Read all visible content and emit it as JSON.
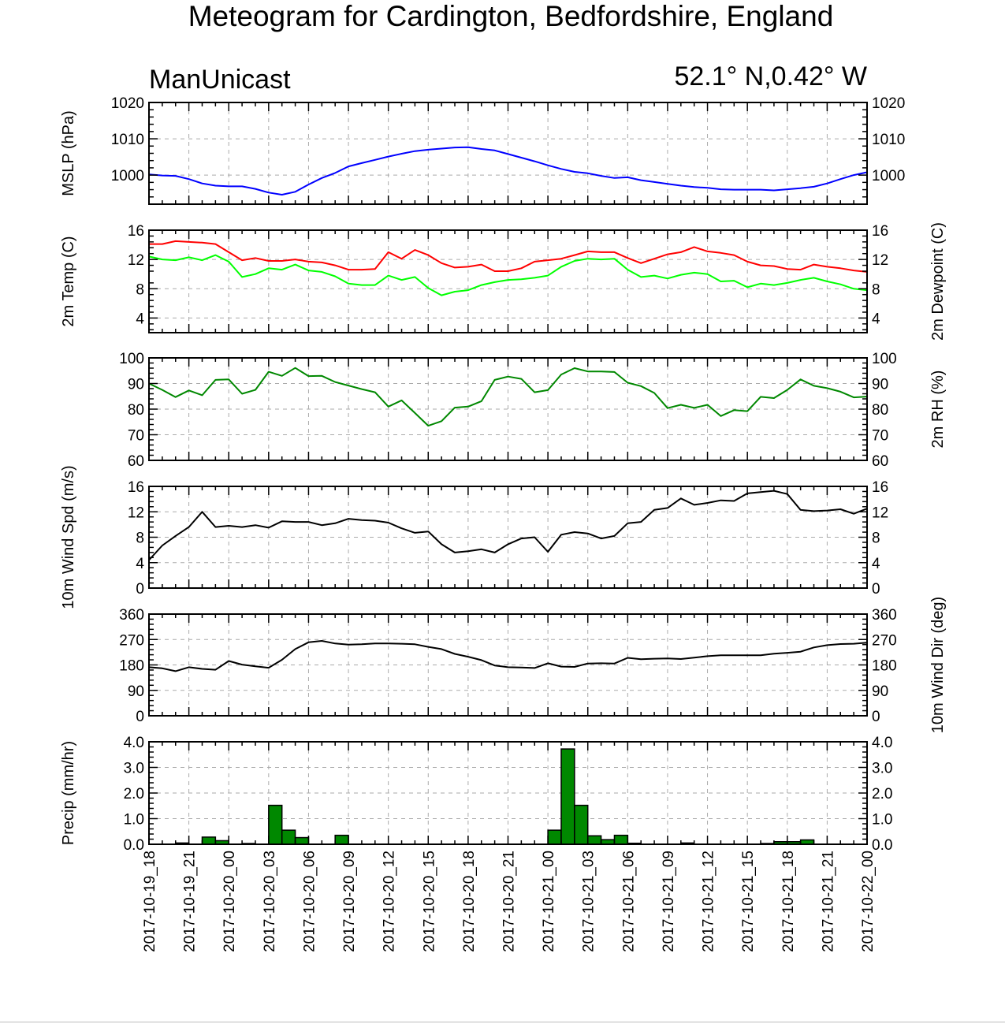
{
  "header": {
    "title": "Meteogram for Cardington, Bedfordshire, England",
    "model": "ManUnicast",
    "location": "52.1° N,0.42° W"
  },
  "time_axis": {
    "start": "2017-10-19_18",
    "end": "2017-10-22_00",
    "labels": [
      "2017-10-19_18",
      "2017-10-19_21",
      "2017-10-20_00",
      "2017-10-20_03",
      "2017-10-20_06",
      "2017-10-20_09",
      "2017-10-20_12",
      "2017-10-20_15",
      "2017-10-20_18",
      "2017-10-20_21",
      "2017-10-21_00",
      "2017-10-21_03",
      "2017-10-21_06",
      "2017-10-21_09",
      "2017-10-21_12",
      "2017-10-21_15",
      "2017-10-21_18",
      "2017-10-21_21",
      "2017-10-22_00"
    ]
  },
  "chart_data": [
    {
      "type": "line",
      "ylabel": "MSLP (hPa)",
      "right_ylabel": "",
      "ylim": [
        992,
        1020
      ],
      "yticks": [
        1000,
        1010,
        1020
      ],
      "right_yticks": [
        1000,
        1010,
        1020
      ],
      "grid": true,
      "x": [
        0,
        1,
        2,
        3,
        4,
        5,
        6,
        7,
        8,
        9,
        10,
        11,
        12,
        13,
        14,
        15,
        16,
        17,
        18,
        19,
        20,
        21,
        22,
        23,
        24,
        25,
        26,
        27,
        28,
        29,
        30,
        31,
        32,
        33,
        34,
        35,
        36,
        37,
        38,
        39,
        40,
        41,
        42,
        43,
        44,
        45,
        46,
        47,
        48,
        49,
        50,
        51,
        52,
        53,
        54
      ],
      "series": [
        {
          "name": "",
          "color": "#0000ff",
          "values": [
            1000.2,
            999.9,
            999.8,
            998.9,
            997.7,
            997.1,
            996.9,
            996.9,
            996.2,
            995.2,
            994.6,
            995.4,
            997.4,
            999.2,
            1000.6,
            1002.4,
            1003.3,
            1004.2,
            1005.1,
            1005.9,
            1006.6,
            1007.0,
            1007.3,
            1007.6,
            1007.7,
            1007.2,
            1006.8,
            1005.8,
            1004.8,
            1003.8,
            1002.7,
            1001.7,
            1000.9,
            1000.5,
            999.8,
            999.2,
            999.4,
            998.6,
            998.1,
            997.6,
            997.1,
            996.7,
            996.5,
            996.1,
            996.0,
            996.0,
            996.0,
            995.8,
            996.1,
            996.4,
            996.8,
            997.7,
            998.9,
            1000.0,
            1000.8
          ]
        }
      ]
    },
    {
      "type": "line",
      "ylabel": "2m Temp (C)",
      "right_ylabel": "2m Dewpoint (C)",
      "ylim": [
        2,
        16
      ],
      "yticks": [
        4,
        8,
        12,
        16
      ],
      "right_yticks": [
        4,
        8,
        12,
        16
      ],
      "grid": true,
      "x": [
        0,
        1,
        2,
        3,
        4,
        5,
        6,
        7,
        8,
        9,
        10,
        11,
        12,
        13,
        14,
        15,
        16,
        17,
        18,
        19,
        20,
        21,
        22,
        23,
        24,
        25,
        26,
        27,
        28,
        29,
        30,
        31,
        32,
        33,
        34,
        35,
        36,
        37,
        38,
        39,
        40,
        41,
        42,
        43,
        44,
        45,
        46,
        47,
        48,
        49,
        50,
        51,
        52,
        53,
        54
      ],
      "series": [
        {
          "name": "",
          "color": "#ff0000",
          "values": [
            14.1,
            14.1,
            14.5,
            14.4,
            14.3,
            14.1,
            13.0,
            11.9,
            12.2,
            11.8,
            11.8,
            12.0,
            11.7,
            11.6,
            11.2,
            10.6,
            10.6,
            10.7,
            13.0,
            12.1,
            13.3,
            12.6,
            11.5,
            10.9,
            11.0,
            11.3,
            10.4,
            10.4,
            10.8,
            11.7,
            11.9,
            12.1,
            12.6,
            13.1,
            13.0,
            13.0,
            12.2,
            11.5,
            12.1,
            12.7,
            13.0,
            13.7,
            13.1,
            12.9,
            12.6,
            11.7,
            11.2,
            11.1,
            10.7,
            10.6,
            11.3,
            11.0,
            10.8,
            10.5,
            10.3
          ]
        },
        {
          "name": "",
          "color": "#00ff00",
          "values": [
            12.4,
            12.0,
            11.9,
            12.3,
            11.9,
            12.6,
            11.7,
            9.6,
            10.0,
            10.8,
            10.6,
            11.3,
            10.5,
            10.3,
            9.7,
            8.7,
            8.5,
            8.5,
            9.8,
            9.2,
            9.6,
            8.1,
            7.1,
            7.6,
            7.8,
            8.5,
            8.9,
            9.2,
            9.3,
            9.5,
            9.8,
            11.0,
            11.8,
            12.1,
            12.0,
            12.1,
            10.6,
            9.6,
            9.8,
            9.4,
            9.9,
            10.2,
            10.0,
            9.0,
            9.1,
            8.2,
            8.7,
            8.5,
            8.8,
            9.2,
            9.5,
            9.0,
            8.6,
            8.0,
            7.8
          ]
        }
      ]
    },
    {
      "type": "line",
      "ylabel": "",
      "right_ylabel": "2m RH (%)",
      "ylim": [
        60,
        100
      ],
      "yticks": [
        60,
        70,
        80,
        90,
        100
      ],
      "right_yticks": [
        60,
        70,
        80,
        90,
        100
      ],
      "grid": true,
      "x": [
        0,
        1,
        2,
        3,
        4,
        5,
        6,
        7,
        8,
        9,
        10,
        11,
        12,
        13,
        14,
        15,
        16,
        17,
        18,
        19,
        20,
        21,
        22,
        23,
        24,
        25,
        26,
        27,
        28,
        29,
        30,
        31,
        32,
        33,
        34,
        35,
        36,
        37,
        38,
        39,
        40,
        41,
        42,
        43,
        44,
        45,
        46,
        47,
        48,
        49,
        50,
        51,
        52,
        53,
        54
      ],
      "series": [
        {
          "name": "",
          "color": "#008800",
          "values": [
            90,
            87.5,
            84.7,
            87.3,
            85.4,
            91.4,
            91.6,
            86,
            87.5,
            94.6,
            93,
            96.1,
            92.9,
            93,
            90.6,
            89.2,
            87.8,
            86.6,
            81,
            83.4,
            78.5,
            73.5,
            75.3,
            80.6,
            81,
            83.1,
            91.4,
            92.7,
            91.8,
            86.6,
            87.4,
            93.5,
            96,
            94.7,
            94.7,
            94.5,
            90.3,
            89,
            86.3,
            80.4,
            81.7,
            80.5,
            81.7,
            77.3,
            79.6,
            79.2,
            84.8,
            84.3,
            87.5,
            91.6,
            89.1,
            88.2,
            86.8,
            84.6,
            84.9
          ]
        }
      ]
    },
    {
      "type": "line",
      "ylabel": "10m Wind Spd (m/s)",
      "right_ylabel": "",
      "ylim": [
        0,
        16
      ],
      "yticks": [
        0,
        4,
        8,
        12,
        16
      ],
      "right_yticks": [
        0,
        4,
        8,
        12,
        16
      ],
      "grid": true,
      "x": [
        0,
        1,
        2,
        3,
        4,
        5,
        6,
        7,
        8,
        9,
        10,
        11,
        12,
        13,
        14,
        15,
        16,
        17,
        18,
        19,
        20,
        21,
        22,
        23,
        24,
        25,
        26,
        27,
        28,
        29,
        30,
        31,
        32,
        33,
        34,
        35,
        36,
        37,
        38,
        39,
        40,
        41,
        42,
        43,
        44,
        45,
        46,
        47,
        48,
        49,
        50,
        51,
        52,
        53,
        54
      ],
      "series": [
        {
          "name": "",
          "color": "#000000",
          "values": [
            4.4,
            6.7,
            8.2,
            9.6,
            12,
            9.6,
            9.8,
            9.6,
            9.9,
            9.5,
            10.5,
            10.4,
            10.4,
            9.9,
            10.2,
            10.9,
            10.7,
            10.6,
            10.3,
            9.4,
            8.7,
            8.9,
            6.9,
            5.6,
            5.8,
            6.1,
            5.6,
            6.9,
            7.8,
            8,
            5.7,
            8.4,
            8.8,
            8.6,
            7.8,
            8.2,
            10.2,
            10.4,
            12.3,
            12.6,
            14.1,
            13.1,
            13.4,
            13.8,
            13.7,
            14.9,
            15.1,
            15.3,
            14.8,
            12.3,
            12.1,
            12.2,
            12.4,
            11.7,
            12.5
          ]
        }
      ]
    },
    {
      "type": "line",
      "ylabel": "",
      "right_ylabel": "10m Wind Dir (deg)",
      "ylim": [
        0,
        360
      ],
      "yticks": [
        0,
        90,
        180,
        270,
        360
      ],
      "right_yticks": [
        0,
        90,
        180,
        270,
        360
      ],
      "grid": true,
      "x": [
        0,
        1,
        2,
        3,
        4,
        5,
        6,
        7,
        8,
        9,
        10,
        11,
        12,
        13,
        14,
        15,
        16,
        17,
        18,
        19,
        20,
        21,
        22,
        23,
        24,
        25,
        26,
        27,
        28,
        29,
        30,
        31,
        32,
        33,
        34,
        35,
        36,
        37,
        38,
        39,
        40,
        41,
        42,
        43,
        44,
        45,
        46,
        47,
        48,
        49,
        50,
        51,
        52,
        53,
        54
      ],
      "series": [
        {
          "name": "",
          "color": "#000000",
          "values": [
            172,
            168,
            158,
            172,
            166,
            163,
            194,
            181,
            175,
            170,
            198,
            236,
            260,
            265,
            256,
            252,
            253,
            256,
            256,
            255,
            253,
            244,
            236,
            219,
            209,
            197,
            178,
            172,
            171,
            169,
            186,
            174,
            173,
            185,
            186,
            185,
            205,
            200,
            202,
            203,
            201,
            206,
            211,
            214,
            214,
            214,
            214,
            220,
            223,
            227,
            242,
            250,
            254,
            255,
            259
          ]
        }
      ]
    },
    {
      "type": "bar",
      "ylabel": "Precip (mm/hr)",
      "right_ylabel": "",
      "ylim": [
        0,
        4
      ],
      "yticks": [
        "0.0",
        "1.0",
        "2.0",
        "3.0",
        "4.0"
      ],
      "right_yticks": [
        "0.0",
        "1.0",
        "2.0",
        "3.0",
        "4.0"
      ],
      "grid": true,
      "x": [
        0,
        1,
        2,
        3,
        4,
        5,
        6,
        7,
        8,
        9,
        10,
        11,
        12,
        13,
        14,
        15,
        16,
        17,
        18,
        19,
        20,
        21,
        22,
        23,
        24,
        25,
        26,
        27,
        28,
        29,
        30,
        31,
        32,
        33,
        34,
        35,
        36,
        37,
        38,
        39,
        40,
        41,
        42,
        43,
        44,
        45,
        46,
        47,
        48,
        49,
        50,
        51,
        52,
        53
      ],
      "series": [
        {
          "name": "",
          "color": "#008800",
          "values": [
            0,
            0,
            0.05,
            0,
            0.28,
            0.14,
            0,
            0.03,
            0,
            1.52,
            0.55,
            0.26,
            0,
            0,
            0.35,
            0,
            0,
            0,
            0,
            0,
            0,
            0,
            0,
            0,
            0,
            0,
            0,
            0,
            0,
            0,
            0.55,
            3.72,
            1.52,
            0.33,
            0.18,
            0.35,
            0.04,
            0,
            0,
            0,
            0.05,
            0,
            0,
            0,
            0,
            0,
            0.03,
            0.1,
            0.1,
            0.17,
            0,
            0,
            0,
            0
          ]
        }
      ]
    }
  ]
}
